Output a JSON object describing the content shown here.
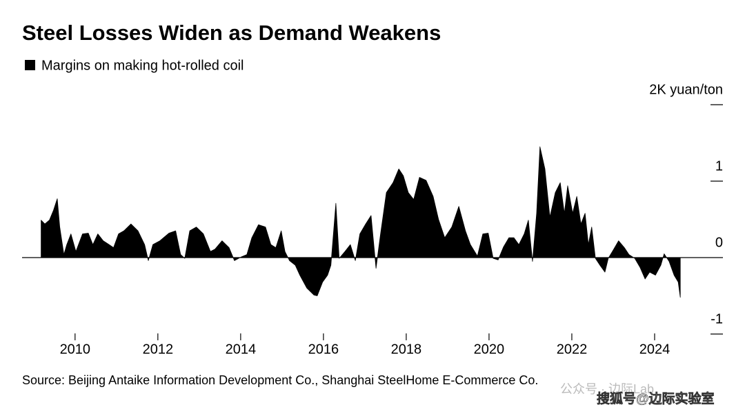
{
  "chart_data": {
    "type": "area",
    "title": "Steel Losses Widen as Demand Weakens",
    "series": [
      {
        "name": "Margins on making hot-rolled coil",
        "color": "#000000",
        "x": [
          2009.18,
          2009.27,
          2009.38,
          2009.48,
          2009.57,
          2009.63,
          2009.73,
          2009.8,
          2009.9,
          2010.02,
          2010.18,
          2010.32,
          2010.43,
          2010.55,
          2010.68,
          2010.82,
          2010.93,
          2011.05,
          2011.18,
          2011.35,
          2011.52,
          2011.68,
          2011.77,
          2011.88,
          2012.05,
          2012.27,
          2012.43,
          2012.55,
          2012.65,
          2012.77,
          2012.93,
          2013.1,
          2013.27,
          2013.38,
          2013.55,
          2013.72,
          2013.85,
          2014.02,
          2014.15,
          2014.27,
          2014.43,
          2014.6,
          2014.73,
          2014.85,
          2014.98,
          2015.07,
          2015.18,
          2015.32,
          2015.43,
          2015.6,
          2015.77,
          2015.85,
          2015.98,
          2016.1,
          2016.18,
          2016.3,
          2016.38,
          2016.52,
          2016.65,
          2016.77,
          2016.88,
          2017.02,
          2017.15,
          2017.27,
          2017.38,
          2017.52,
          2017.68,
          2017.82,
          2017.93,
          2018.05,
          2018.18,
          2018.32,
          2018.48,
          2018.65,
          2018.78,
          2018.93,
          2019.1,
          2019.27,
          2019.43,
          2019.55,
          2019.72,
          2019.85,
          2019.98,
          2020.1,
          2020.22,
          2020.35,
          2020.48,
          2020.6,
          2020.72,
          2020.85,
          2020.95,
          2021.05,
          2021.15,
          2021.23,
          2021.35,
          2021.47,
          2021.6,
          2021.72,
          2021.82,
          2021.9,
          2022.02,
          2022.12,
          2022.22,
          2022.32,
          2022.4,
          2022.48,
          2022.57,
          2022.68,
          2022.8,
          2022.88,
          2022.98,
          2023.13,
          2023.27,
          2023.38,
          2023.52,
          2023.65,
          2023.77,
          2023.88,
          2024.02,
          2024.15,
          2024.23,
          2024.35,
          2024.47,
          2024.57,
          2024.62
        ],
        "values": [
          0.49,
          0.44,
          0.49,
          0.62,
          0.77,
          0.4,
          0.04,
          0.17,
          0.31,
          0.08,
          0.31,
          0.32,
          0.17,
          0.31,
          0.22,
          0.17,
          0.13,
          0.31,
          0.35,
          0.44,
          0.35,
          0.17,
          -0.04,
          0.17,
          0.22,
          0.32,
          0.35,
          0.04,
          -0.01,
          0.35,
          0.4,
          0.31,
          0.08,
          0.11,
          0.22,
          0.13,
          -0.04,
          0.01,
          0.04,
          0.26,
          0.43,
          0.4,
          0.17,
          0.13,
          0.35,
          0.08,
          -0.04,
          -0.1,
          -0.23,
          -0.4,
          -0.49,
          -0.5,
          -0.32,
          -0.23,
          -0.1,
          0.71,
          -0.01,
          0.08,
          0.17,
          -0.04,
          0.31,
          0.44,
          0.55,
          -0.14,
          0.31,
          0.85,
          0.98,
          1.16,
          1.07,
          0.85,
          0.76,
          1.05,
          1.01,
          0.8,
          0.5,
          0.26,
          0.4,
          0.67,
          0.35,
          0.17,
          0.02,
          0.31,
          0.32,
          -0.01,
          -0.03,
          0.14,
          0.26,
          0.26,
          0.17,
          0.31,
          0.49,
          -0.05,
          0.58,
          1.45,
          1.16,
          0.53,
          0.85,
          0.98,
          0.58,
          0.94,
          0.58,
          0.8,
          0.44,
          0.58,
          0.17,
          0.4,
          -0.01,
          -0.1,
          -0.19,
          -0.01,
          0.08,
          0.22,
          0.13,
          0.04,
          -0.01,
          -0.13,
          -0.28,
          -0.19,
          -0.23,
          -0.1,
          0.05,
          -0.05,
          -0.23,
          -0.32,
          -0.52
        ]
      }
    ],
    "xlim": [
      2008.72,
      2025.65
    ],
    "xticks": [
      2010,
      2012,
      2014,
      2016,
      2018,
      2020,
      2022,
      2024
    ],
    "ylim": [
      -1.1,
      2
    ],
    "yticks": [
      {
        "value": 2,
        "label": "2K yuan/ton"
      },
      1,
      0,
      -1
    ],
    "source": "Source: Beijing Antaike Information Development Co., Shanghai SteelHome E-Commerce Co.",
    "watermarks": [
      "公众号 · 边际Lab",
      "搜狐号@边际实验室"
    ]
  }
}
